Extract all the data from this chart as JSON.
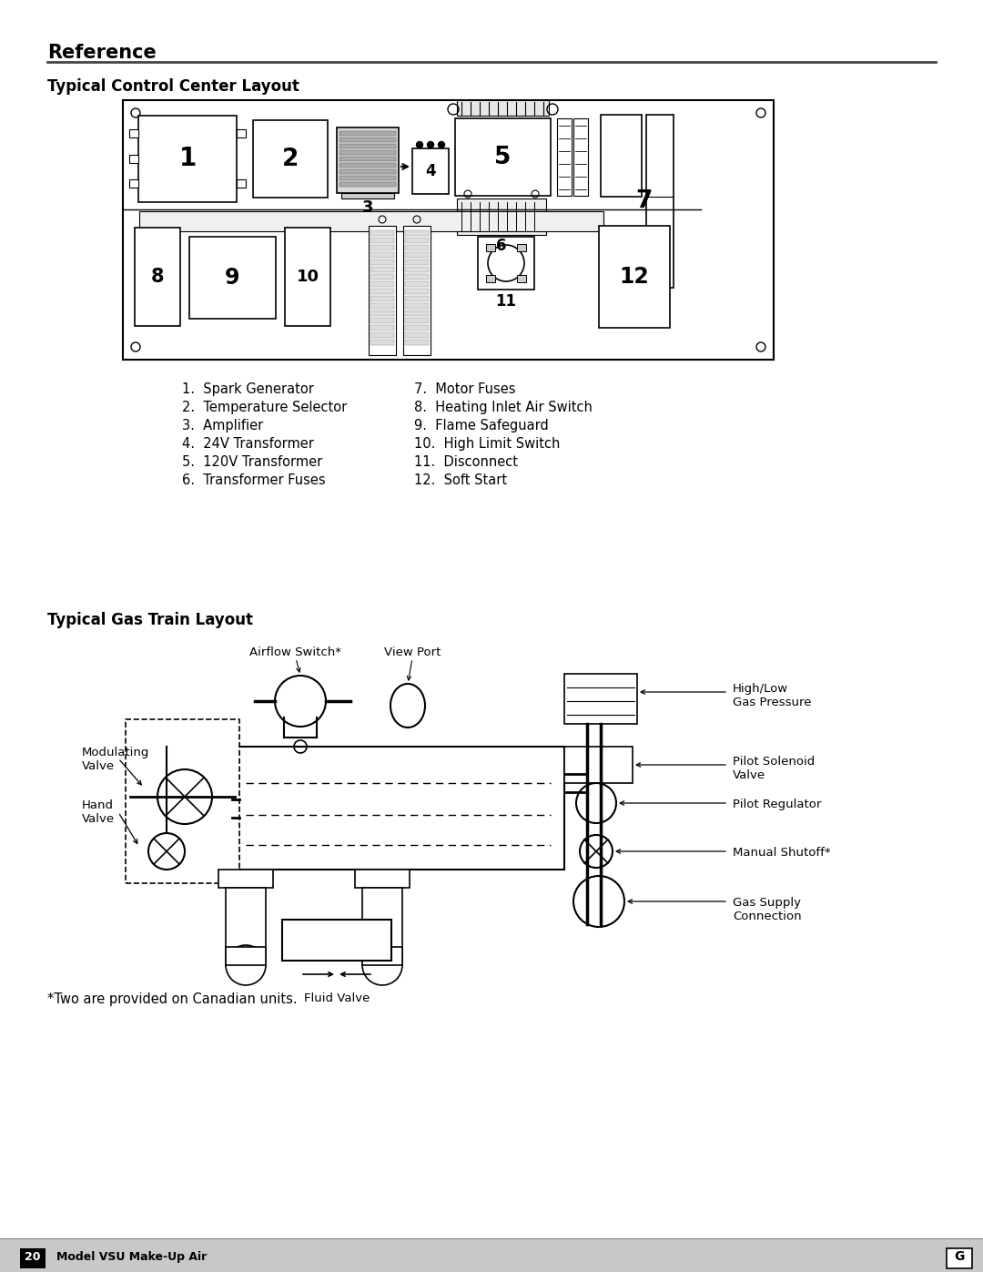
{
  "title_reference": "Reference",
  "title_control": "Typical Control Center Layout",
  "title_gas": "Typical Gas Train Layout",
  "footer_page": "20",
  "footer_label": "Model VSU Make-Up Air",
  "bg_color": "#ffffff",
  "control_labels_left": [
    "1.  Spark Generator",
    "2.  Temperature Selector",
    "3.  Amplifier",
    "4.  24V Transformer",
    "5.  120V Transformer",
    "6.  Transformer Fuses"
  ],
  "control_labels_right": [
    "7.  Motor Fuses",
    "8.  Heating Inlet Air Switch",
    "9.  Flame Safeguard",
    "10.  High Limit Switch",
    "11.  Disconnect",
    "12.  Soft Start"
  ],
  "footnote": "*Two are provided on Canadian units."
}
